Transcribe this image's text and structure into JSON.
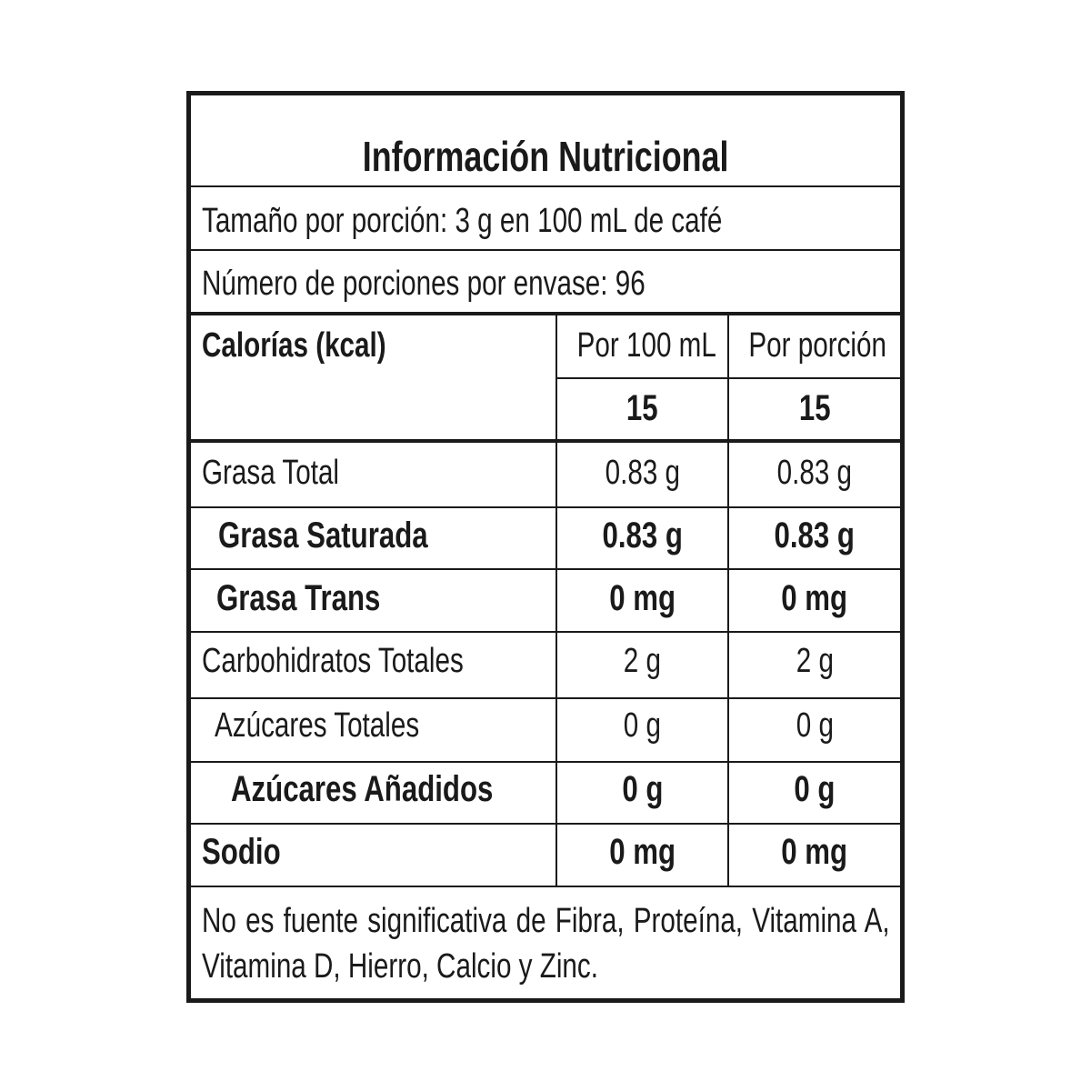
{
  "title": "Información Nutricional",
  "serving_size": "Tamaño por porción: 3 g en 100 mL de café",
  "servings": "Número de porciones por envase: 96",
  "calories": {
    "label": "Calorías (kcal)",
    "col1": "Por 100 mL",
    "col2": "Por porción",
    "v1": "15",
    "v2": "15"
  },
  "rows": [
    {
      "label": "Grasa Total",
      "v1": "0.83 g",
      "v2": "0.83 g"
    },
    {
      "label": "Grasa Saturada",
      "v1": "0.83 g",
      "v2": "0.83 g"
    },
    {
      "label": "Grasa Trans",
      "v1": "0 mg",
      "v2": "0 mg"
    },
    {
      "label": "Carbohidratos Totales",
      "v1": "2 g",
      "v2": "2 g"
    },
    {
      "label": "Azúcares Totales",
      "v1": "0 g",
      "v2": "0 g"
    },
    {
      "label": "Azúcares Añadidos",
      "v1": "0 g",
      "v2": "0 g"
    },
    {
      "label": "Sodio",
      "v1": "0 mg",
      "v2": "0 mg"
    }
  ],
  "footer": "No es fuente significativa de Fibra, Proteína, Vitamina A, Vitamina D, Hierro, Calcio y Zinc."
}
